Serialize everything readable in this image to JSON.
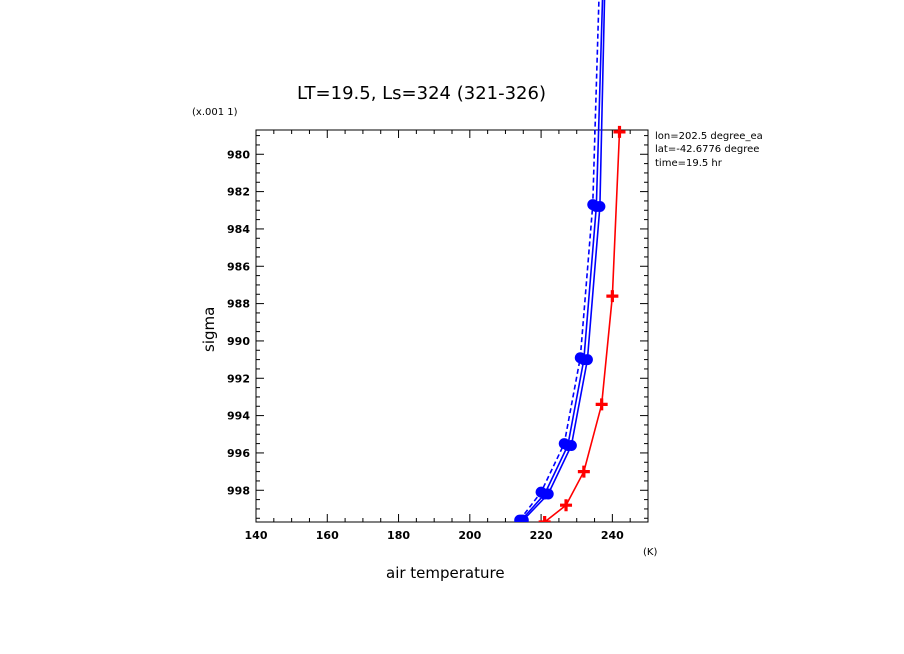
{
  "chart_data": {
    "type": "line",
    "title": "LT=19.5, Ls=324 (321-326)",
    "xlabel": "air temperature",
    "xunit": "(K)",
    "ylabel": "sigma",
    "yscale_note": "(x.001 1)",
    "xlim": [
      140,
      250
    ],
    "ylim": [
      999.7,
      978.7
    ],
    "x_ticks": [
      140,
      160,
      180,
      200,
      220,
      240
    ],
    "y_ticks": [
      980,
      982,
      984,
      986,
      988,
      990,
      992,
      994,
      996,
      998
    ],
    "grid": false,
    "annotations": [
      "lon=202.5 degree_ea",
      "lat=-42.6776 degree",
      "time=19.5 hr"
    ],
    "series": [
      {
        "color": "#0000ff",
        "style": "solid",
        "marker": "circle",
        "points": [
          [
            214.5,
            999.6
          ],
          [
            221.0,
            998.2
          ],
          [
            227.5,
            995.6
          ],
          [
            232.0,
            991.0
          ],
          [
            235.5,
            982.8
          ],
          [
            237.5,
            970.0
          ]
        ]
      },
      {
        "color": "#0000ff",
        "style": "dashed",
        "marker": "circle",
        "points": [
          [
            214.0,
            999.6
          ],
          [
            220.0,
            998.1
          ],
          [
            226.5,
            995.5
          ],
          [
            231.0,
            990.9
          ],
          [
            234.5,
            982.7
          ],
          [
            236.5,
            970.0
          ]
        ]
      },
      {
        "color": "#0000ff",
        "style": "solid",
        "marker": "circle",
        "points": [
          [
            215.0,
            999.6
          ],
          [
            222.0,
            998.2
          ],
          [
            228.5,
            995.6
          ],
          [
            233.0,
            991.0
          ],
          [
            236.5,
            982.8
          ],
          [
            238.0,
            970.0
          ]
        ]
      },
      {
        "color": "#ff0000",
        "style": "solid",
        "marker": "cross",
        "points": [
          [
            221.0,
            999.7
          ],
          [
            227.0,
            998.8
          ],
          [
            232.0,
            997.0
          ],
          [
            237.0,
            993.4
          ],
          [
            240.0,
            987.6
          ],
          [
            242.0,
            978.8
          ]
        ]
      }
    ]
  }
}
